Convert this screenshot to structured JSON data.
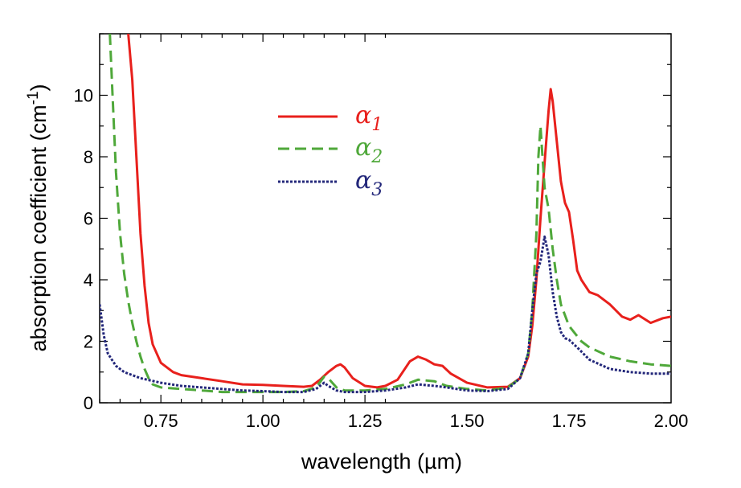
{
  "chart_data": {
    "type": "line",
    "xlabel": "wavelength (µm)",
    "ylabel": "absorption coefficient  (cm",
    "ylabel_sup": "-1",
    "ylabel_close": ")",
    "xlim": [
      0.6,
      2.0
    ],
    "ylim": [
      0,
      12
    ],
    "x_ticks": [
      0.75,
      1.0,
      1.25,
      1.5,
      1.75,
      2.0
    ],
    "x_tick_labels": [
      "0.75",
      "1.00",
      "1.25",
      "1.50",
      "1.75",
      "2.00"
    ],
    "y_ticks": [
      0,
      2,
      4,
      6,
      8,
      10
    ],
    "y_tick_labels": [
      "0",
      "2",
      "4",
      "6",
      "8",
      "10"
    ],
    "grid": false,
    "legend_position": "upper-center",
    "series": [
      {
        "name": "α",
        "subscript": "1",
        "color": "#e8201c",
        "dash": "solid",
        "points": [
          [
            0.67,
            12
          ],
          [
            0.68,
            10.5
          ],
          [
            0.69,
            8
          ],
          [
            0.7,
            5.5
          ],
          [
            0.71,
            3.8
          ],
          [
            0.72,
            2.6
          ],
          [
            0.73,
            1.9
          ],
          [
            0.75,
            1.3
          ],
          [
            0.78,
            1.0
          ],
          [
            0.8,
            0.9
          ],
          [
            0.85,
            0.8
          ],
          [
            0.9,
            0.7
          ],
          [
            0.95,
            0.6
          ],
          [
            1.0,
            0.58
          ],
          [
            1.05,
            0.55
          ],
          [
            1.1,
            0.52
          ],
          [
            1.12,
            0.55
          ],
          [
            1.14,
            0.75
          ],
          [
            1.16,
            1.0
          ],
          [
            1.18,
            1.2
          ],
          [
            1.19,
            1.25
          ],
          [
            1.2,
            1.15
          ],
          [
            1.22,
            0.8
          ],
          [
            1.25,
            0.55
          ],
          [
            1.28,
            0.5
          ],
          [
            1.3,
            0.55
          ],
          [
            1.33,
            0.75
          ],
          [
            1.36,
            1.35
          ],
          [
            1.38,
            1.5
          ],
          [
            1.4,
            1.4
          ],
          [
            1.42,
            1.25
          ],
          [
            1.44,
            1.2
          ],
          [
            1.46,
            0.95
          ],
          [
            1.5,
            0.65
          ],
          [
            1.55,
            0.5
          ],
          [
            1.6,
            0.52
          ],
          [
            1.63,
            0.8
          ],
          [
            1.65,
            1.5
          ],
          [
            1.66,
            2.5
          ],
          [
            1.67,
            4.0
          ],
          [
            1.68,
            6.0
          ],
          [
            1.69,
            7.8
          ],
          [
            1.7,
            9.5
          ],
          [
            1.705,
            10.2
          ],
          [
            1.71,
            9.8
          ],
          [
            1.72,
            8.5
          ],
          [
            1.73,
            7.2
          ],
          [
            1.74,
            6.5
          ],
          [
            1.75,
            6.2
          ],
          [
            1.76,
            5.3
          ],
          [
            1.77,
            4.3
          ],
          [
            1.78,
            4.0
          ],
          [
            1.8,
            3.6
          ],
          [
            1.82,
            3.5
          ],
          [
            1.85,
            3.2
          ],
          [
            1.88,
            2.8
          ],
          [
            1.9,
            2.7
          ],
          [
            1.92,
            2.85
          ],
          [
            1.95,
            2.6
          ],
          [
            1.98,
            2.75
          ],
          [
            2.0,
            2.8
          ]
        ]
      },
      {
        "name": "α",
        "subscript": "2",
        "color": "#4fa83a",
        "dash": "dashed",
        "points": [
          [
            0.625,
            12
          ],
          [
            0.63,
            10.5
          ],
          [
            0.64,
            7.5
          ],
          [
            0.65,
            5.5
          ],
          [
            0.66,
            4.2
          ],
          [
            0.67,
            3.3
          ],
          [
            0.68,
            2.6
          ],
          [
            0.69,
            2.0
          ],
          [
            0.7,
            1.5
          ],
          [
            0.71,
            1.1
          ],
          [
            0.72,
            0.8
          ],
          [
            0.73,
            0.6
          ],
          [
            0.75,
            0.5
          ],
          [
            0.8,
            0.45
          ],
          [
            0.85,
            0.4
          ],
          [
            0.9,
            0.35
          ],
          [
            0.95,
            0.35
          ],
          [
            1.0,
            0.35
          ],
          [
            1.05,
            0.35
          ],
          [
            1.1,
            0.38
          ],
          [
            1.13,
            0.5
          ],
          [
            1.15,
            0.85
          ],
          [
            1.16,
            0.8
          ],
          [
            1.18,
            0.5
          ],
          [
            1.2,
            0.4
          ],
          [
            1.25,
            0.4
          ],
          [
            1.3,
            0.45
          ],
          [
            1.35,
            0.6
          ],
          [
            1.38,
            0.75
          ],
          [
            1.42,
            0.7
          ],
          [
            1.45,
            0.55
          ],
          [
            1.5,
            0.45
          ],
          [
            1.55,
            0.4
          ],
          [
            1.6,
            0.5
          ],
          [
            1.63,
            0.8
          ],
          [
            1.65,
            1.6
          ],
          [
            1.66,
            3.0
          ],
          [
            1.67,
            5.5
          ],
          [
            1.675,
            8.0
          ],
          [
            1.68,
            9.0
          ],
          [
            1.685,
            8.0
          ],
          [
            1.69,
            7.0
          ],
          [
            1.7,
            6.3
          ],
          [
            1.71,
            5.0
          ],
          [
            1.72,
            4.0
          ],
          [
            1.73,
            3.2
          ],
          [
            1.75,
            2.5
          ],
          [
            1.78,
            2.0
          ],
          [
            1.8,
            1.8
          ],
          [
            1.85,
            1.5
          ],
          [
            1.9,
            1.35
          ],
          [
            1.95,
            1.25
          ],
          [
            2.0,
            1.2
          ]
        ]
      },
      {
        "name": "α",
        "subscript": "3",
        "color": "#23277a",
        "dash": "dotted",
        "points": [
          [
            0.6,
            3.2
          ],
          [
            0.61,
            2.2
          ],
          [
            0.62,
            1.6
          ],
          [
            0.64,
            1.2
          ],
          [
            0.66,
            1.0
          ],
          [
            0.7,
            0.8
          ],
          [
            0.75,
            0.65
          ],
          [
            0.8,
            0.55
          ],
          [
            0.85,
            0.5
          ],
          [
            0.9,
            0.45
          ],
          [
            0.95,
            0.4
          ],
          [
            1.0,
            0.38
          ],
          [
            1.05,
            0.35
          ],
          [
            1.1,
            0.35
          ],
          [
            1.13,
            0.45
          ],
          [
            1.15,
            0.65
          ],
          [
            1.16,
            0.55
          ],
          [
            1.18,
            0.4
          ],
          [
            1.2,
            0.35
          ],
          [
            1.25,
            0.35
          ],
          [
            1.3,
            0.4
          ],
          [
            1.35,
            0.5
          ],
          [
            1.38,
            0.6
          ],
          [
            1.42,
            0.55
          ],
          [
            1.45,
            0.5
          ],
          [
            1.5,
            0.4
          ],
          [
            1.55,
            0.38
          ],
          [
            1.6,
            0.45
          ],
          [
            1.63,
            0.8
          ],
          [
            1.65,
            1.6
          ],
          [
            1.66,
            3.0
          ],
          [
            1.67,
            4.2
          ],
          [
            1.68,
            4.6
          ],
          [
            1.69,
            5.4
          ],
          [
            1.7,
            4.8
          ],
          [
            1.71,
            3.6
          ],
          [
            1.72,
            2.8
          ],
          [
            1.73,
            2.3
          ],
          [
            1.74,
            2.1
          ],
          [
            1.75,
            2.05
          ],
          [
            1.77,
            1.8
          ],
          [
            1.8,
            1.4
          ],
          [
            1.85,
            1.1
          ],
          [
            1.9,
            1.0
          ],
          [
            1.95,
            0.95
          ],
          [
            2.0,
            0.95
          ]
        ]
      }
    ]
  }
}
